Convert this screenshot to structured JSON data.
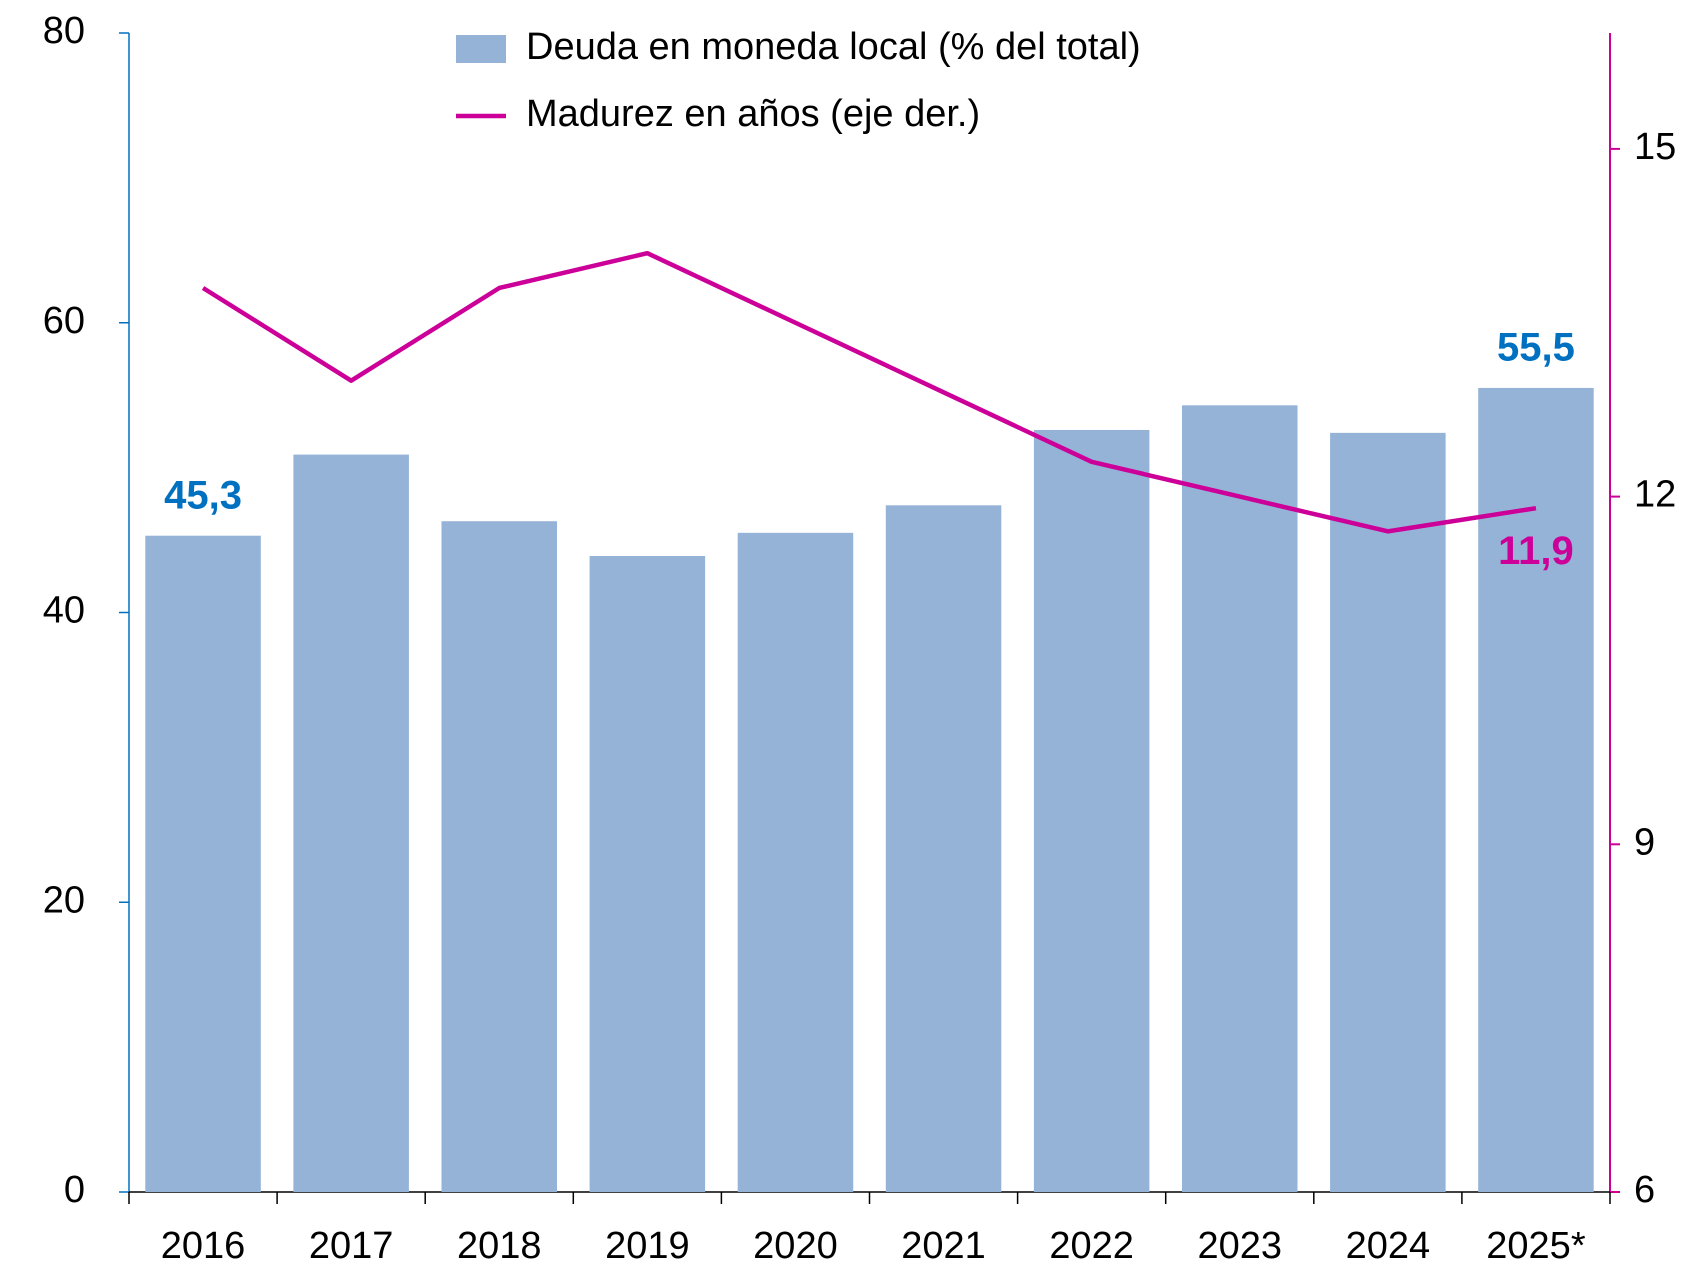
{
  "chart_data": {
    "type": "bar",
    "categories": [
      "2016",
      "2017",
      "2018",
      "2019",
      "2020",
      "2021",
      "2022",
      "2023",
      "2024",
      "2025*"
    ],
    "series": [
      {
        "name": "Deuda en moneda local (% del total)",
        "type": "bar",
        "color": "#95b3d7",
        "values": [
          45.3,
          50.9,
          46.3,
          43.9,
          45.5,
          47.4,
          52.6,
          54.3,
          52.4,
          55.5
        ],
        "value_labels": [
          "45,3",
          null,
          null,
          null,
          null,
          null,
          null,
          null,
          null,
          "55,5"
        ],
        "label_color": "#0070c0"
      },
      {
        "name": "Madurez en años (eje der.)",
        "type": "line",
        "axis": "y2",
        "color": "#cc0099",
        "values": [
          13.8,
          13.0,
          13.8,
          14.1,
          13.5,
          12.9,
          12.3,
          12.0,
          11.7,
          11.9
        ],
        "value_labels": [
          null,
          null,
          null,
          null,
          null,
          null,
          null,
          null,
          null,
          "11,9"
        ],
        "label_color": "#cc0099"
      }
    ],
    "ylim": [
      0,
      80
    ],
    "yticks": [
      0,
      20,
      40,
      60,
      80
    ],
    "y2lim": [
      6,
      16
    ],
    "y2ticks": [
      6,
      9,
      12,
      15
    ],
    "axis_color": "#0070c0",
    "axis2_color": "#cc0099"
  }
}
